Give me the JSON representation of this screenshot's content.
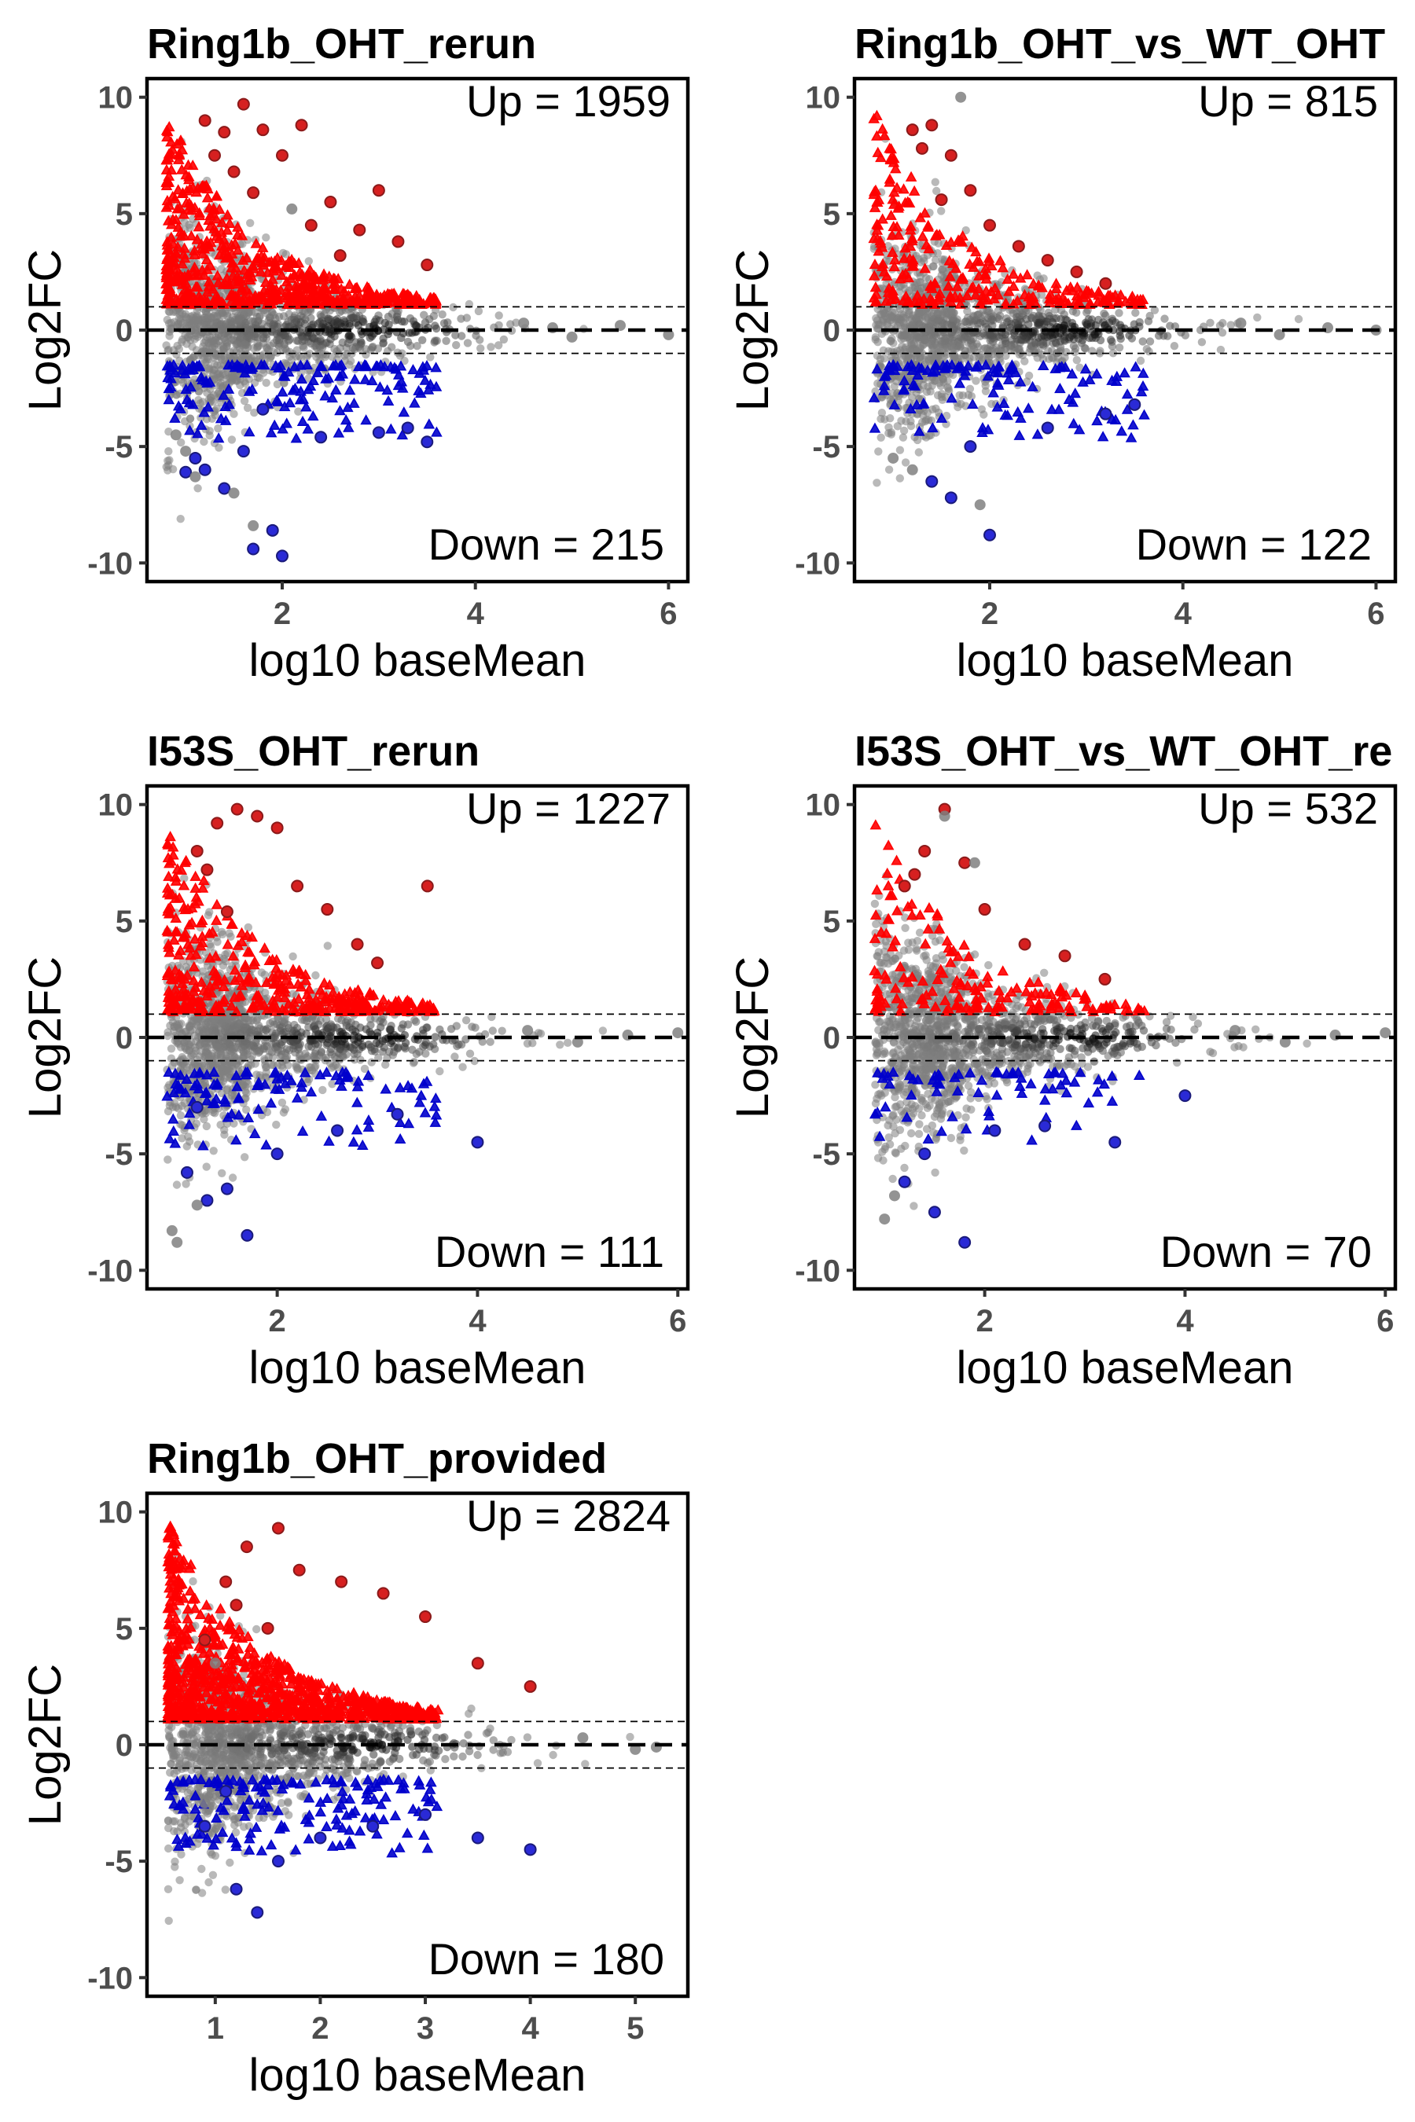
{
  "chart_data": [
    {
      "type": "scatter",
      "title": "Ring1b_OHT_rerun",
      "xlabel": "log10 baseMean",
      "ylabel": "Log2FC",
      "xlim": [
        0.6,
        6.2
      ],
      "ylim": [
        -10.8,
        10.8
      ],
      "xticks": [
        2,
        4,
        6
      ],
      "yticks": [
        -10,
        -5,
        0,
        5,
        10
      ],
      "hlines": [
        {
          "y": 0,
          "style": "dashed-thick"
        },
        {
          "y": 1,
          "style": "dashed-thin"
        },
        {
          "y": -1,
          "style": "dashed-thin"
        }
      ],
      "annotations": {
        "up": "Up = 1959",
        "down": "Down = 215"
      },
      "up_count": 1959,
      "down_count": 215,
      "up_color": "#ff0000",
      "down_color": "#0000cc",
      "ns_color": "#808080",
      "series": [
        {
          "category": "up",
          "x": [
            1.2,
            1.4,
            1.6,
            1.8,
            2.0,
            2.2,
            2.5,
            2.8,
            3.0,
            3.2,
            3.5,
            1.3,
            1.5,
            1.7,
            2.3,
            2.6
          ],
          "y": [
            9.0,
            8.5,
            9.7,
            8.6,
            7.5,
            8.8,
            5.5,
            4.3,
            6.0,
            3.8,
            2.8,
            7.5,
            6.8,
            5.9,
            4.5,
            3.2
          ]
        },
        {
          "category": "down",
          "x": [
            1.0,
            1.2,
            1.4,
            1.6,
            1.7,
            1.9,
            2.0,
            2.4,
            3.0,
            3.3,
            3.5,
            1.1,
            1.8
          ],
          "y": [
            -6.1,
            -6.0,
            -6.8,
            -5.2,
            -9.4,
            -8.6,
            -9.7,
            -4.6,
            -4.4,
            -4.2,
            -4.8,
            -5.5,
            -3.4
          ]
        },
        {
          "category": "ns",
          "x": [
            0.9,
            1.0,
            1.1,
            4.5,
            4.8,
            5.0,
            5.5,
            6.0,
            1.5,
            1.7,
            2.1
          ],
          "y": [
            -4.5,
            -5.2,
            -6.3,
            0.3,
            0.1,
            -0.3,
            0.2,
            -0.2,
            -7.0,
            -8.4,
            5.2
          ]
        }
      ]
    },
    {
      "type": "scatter",
      "title": "Ring1b_OHT_vs_WT_OHT",
      "xlabel": "log10 baseMean",
      "ylabel": "Log2FC",
      "xlim": [
        0.6,
        6.2
      ],
      "ylim": [
        -10.8,
        10.8
      ],
      "xticks": [
        2,
        4,
        6
      ],
      "yticks": [
        -10,
        -5,
        0,
        5,
        10
      ],
      "hlines": [
        {
          "y": 0,
          "style": "dashed-thick"
        },
        {
          "y": 1,
          "style": "dashed-thin"
        },
        {
          "y": -1,
          "style": "dashed-thin"
        }
      ],
      "annotations": {
        "up": "Up = 815",
        "down": "Down = 122"
      },
      "up_count": 815,
      "down_count": 122,
      "up_color": "#ff0000",
      "down_color": "#0000cc",
      "ns_color": "#808080",
      "series": [
        {
          "category": "up",
          "x": [
            1.2,
            1.4,
            1.6,
            1.8,
            2.0,
            2.3,
            2.6,
            2.9,
            3.2,
            1.3,
            1.5
          ],
          "y": [
            8.6,
            8.8,
            7.5,
            6.0,
            4.5,
            3.6,
            3.0,
            2.5,
            2.0,
            7.8,
            5.6
          ]
        },
        {
          "category": "down",
          "x": [
            1.4,
            1.6,
            2.0,
            2.6,
            3.2,
            3.5,
            1.8
          ],
          "y": [
            -6.5,
            -7.2,
            -8.8,
            -4.2,
            -3.6,
            -3.2,
            -5.0
          ]
        },
        {
          "category": "ns",
          "x": [
            1.0,
            1.2,
            1.7,
            1.9,
            4.6,
            5.0,
            5.5,
            6.0
          ],
          "y": [
            -5.5,
            -6.0,
            10.0,
            -7.5,
            0.3,
            -0.2,
            0.1,
            0.0
          ]
        }
      ]
    },
    {
      "type": "scatter",
      "title": "I53S_OHT_rerun",
      "xlabel": "log10 baseMean",
      "ylabel": "Log2FC",
      "xlim": [
        0.7,
        6.1
      ],
      "ylim": [
        -10.8,
        10.8
      ],
      "xticks": [
        2,
        4,
        6
      ],
      "yticks": [
        -10,
        -5,
        0,
        5,
        10
      ],
      "hlines": [
        {
          "y": 0,
          "style": "dashed-thick"
        },
        {
          "y": 1,
          "style": "dashed-thin"
        },
        {
          "y": -1,
          "style": "dashed-thin"
        }
      ],
      "annotations": {
        "up": "Up = 1227",
        "down": "Down = 111"
      },
      "up_count": 1227,
      "down_count": 111,
      "up_color": "#ff0000",
      "down_color": "#0000cc",
      "ns_color": "#808080",
      "series": [
        {
          "category": "up",
          "x": [
            1.2,
            1.4,
            1.6,
            1.8,
            2.0,
            2.2,
            2.5,
            2.8,
            3.0,
            3.5,
            1.3,
            1.5
          ],
          "y": [
            8.0,
            9.2,
            9.8,
            9.5,
            9.0,
            6.5,
            5.5,
            4.0,
            3.2,
            6.5,
            7.2,
            5.4
          ]
        },
        {
          "category": "down",
          "x": [
            1.1,
            1.3,
            1.5,
            1.7,
            2.0,
            2.6,
            3.2,
            4.0,
            1.2
          ],
          "y": [
            -5.8,
            -7.0,
            -6.5,
            -8.5,
            -5.0,
            -4.0,
            -3.3,
            -4.5,
            -3.0
          ]
        },
        {
          "category": "ns",
          "x": [
            0.95,
            1.0,
            1.2,
            4.5,
            5.0,
            5.5,
            6.0
          ],
          "y": [
            -8.3,
            -8.8,
            -7.2,
            0.3,
            -0.2,
            0.1,
            0.2
          ]
        }
      ]
    },
    {
      "type": "scatter",
      "title": "I53S_OHT_vs_WT_OHT_re",
      "xlabel": "log10 baseMean",
      "ylabel": "Log2FC",
      "xlim": [
        0.7,
        6.1
      ],
      "ylim": [
        -10.8,
        10.8
      ],
      "xticks": [
        2,
        4,
        6
      ],
      "yticks": [
        -10,
        -5,
        0,
        5,
        10
      ],
      "hlines": [
        {
          "y": 0,
          "style": "dashed-thick"
        },
        {
          "y": 1,
          "style": "dashed-thin"
        },
        {
          "y": -1,
          "style": "dashed-thin"
        }
      ],
      "annotations": {
        "up": "Up = 532",
        "down": "Down = 70"
      },
      "up_count": 532,
      "down_count": 70,
      "up_color": "#ff0000",
      "down_color": "#0000cc",
      "ns_color": "#808080",
      "series": [
        {
          "category": "up",
          "x": [
            1.2,
            1.4,
            1.6,
            1.8,
            2.0,
            2.4,
            2.8,
            3.2,
            1.3
          ],
          "y": [
            6.5,
            8.0,
            9.8,
            7.5,
            5.5,
            4.0,
            3.5,
            2.5,
            7.0
          ]
        },
        {
          "category": "down",
          "x": [
            1.2,
            1.5,
            1.8,
            2.1,
            2.6,
            3.3,
            4.0,
            1.4
          ],
          "y": [
            -6.2,
            -7.5,
            -8.8,
            -4.0,
            -3.8,
            -4.5,
            -2.5,
            -5.0
          ]
        },
        {
          "category": "ns",
          "x": [
            1.0,
            1.1,
            1.6,
            1.9,
            4.5,
            5.0,
            5.5,
            6.0
          ],
          "y": [
            -7.8,
            -6.8,
            9.5,
            7.5,
            0.3,
            -0.2,
            0.1,
            0.2
          ]
        }
      ]
    },
    {
      "type": "scatter",
      "title": "Ring1b_OHT_provided",
      "xlabel": "log10 baseMean",
      "ylabel": "Log2FC",
      "xlim": [
        0.35,
        5.5
      ],
      "ylim": [
        -10.8,
        10.8
      ],
      "xticks": [
        1,
        2,
        3,
        4,
        5
      ],
      "yticks": [
        -10,
        -5,
        0,
        5,
        10
      ],
      "hlines": [
        {
          "y": 0,
          "style": "dashed-thick"
        },
        {
          "y": 1,
          "style": "dashed-thin"
        },
        {
          "y": -1,
          "style": "dashed-thin"
        }
      ],
      "annotations": {
        "up": "Up = 2824",
        "down": "Down = 180"
      },
      "up_count": 2824,
      "down_count": 180,
      "up_color": "#ff0000",
      "down_color": "#0000cc",
      "ns_color": "#808080",
      "series": [
        {
          "category": "up",
          "x": [
            0.9,
            1.1,
            1.3,
            1.6,
            1.8,
            2.2,
            2.6,
            3.0,
            3.5,
            4.0,
            1.2,
            1.5
          ],
          "y": [
            4.5,
            7.0,
            8.5,
            9.3,
            7.5,
            7.0,
            6.5,
            5.5,
            3.5,
            2.5,
            6.0,
            5.0
          ]
        },
        {
          "category": "down",
          "x": [
            0.9,
            1.2,
            1.4,
            1.6,
            2.0,
            2.5,
            3.0,
            3.5,
            4.0,
            1.1
          ],
          "y": [
            -3.5,
            -6.2,
            -7.2,
            -5.0,
            -4.0,
            -3.5,
            -3.0,
            -4.0,
            -4.5,
            -2.0
          ]
        },
        {
          "category": "ns",
          "x": [
            0.9,
            1.0,
            4.5,
            5.0,
            5.2
          ],
          "y": [
            -2.5,
            3.5,
            0.3,
            -0.2,
            -0.1
          ]
        }
      ]
    }
  ]
}
